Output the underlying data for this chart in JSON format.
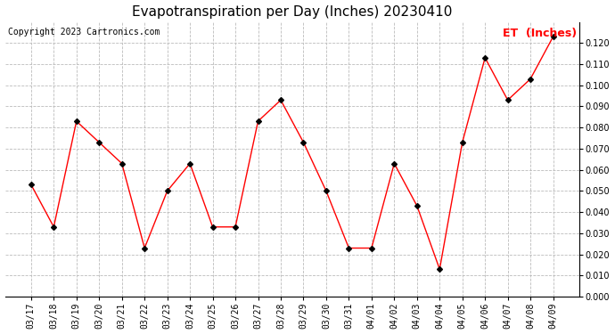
{
  "title": "Evapotranspiration per Day (Inches) 20230410",
  "copyright": "Copyright 2023 Cartronics.com",
  "legend_label": "ET  (Inches)",
  "dates": [
    "03/17",
    "03/18",
    "03/19",
    "03/20",
    "03/21",
    "03/22",
    "03/23",
    "03/24",
    "03/25",
    "03/26",
    "03/27",
    "03/28",
    "03/29",
    "03/30",
    "03/31",
    "04/01",
    "04/02",
    "04/03",
    "04/04",
    "04/05",
    "04/06",
    "04/07",
    "04/08",
    "04/09"
  ],
  "values": [
    0.053,
    0.033,
    0.083,
    0.073,
    0.063,
    0.023,
    0.05,
    0.063,
    0.033,
    0.033,
    0.083,
    0.093,
    0.073,
    0.05,
    0.023,
    0.023,
    0.063,
    0.043,
    0.013,
    0.073,
    0.113,
    0.093,
    0.103,
    0.123
  ],
  "ylim": [
    0.0,
    0.13
  ],
  "yticks": [
    0.0,
    0.01,
    0.02,
    0.03,
    0.04,
    0.05,
    0.06,
    0.07,
    0.08,
    0.09,
    0.1,
    0.11,
    0.12
  ],
  "line_color": "red",
  "marker_color": "black",
  "background_color": "white",
  "grid_color": "#bbbbbb",
  "title_fontsize": 11,
  "copyright_fontsize": 7,
  "legend_fontsize": 9,
  "tick_fontsize": 7
}
